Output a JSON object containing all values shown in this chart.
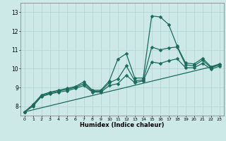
{
  "xlabel": "Humidex (Indice chaleur)",
  "bg_color": "#cce9e7",
  "line_color": "#1a6b5e",
  "grid_color": "#aed4d1",
  "xlim": [
    -0.5,
    23.5
  ],
  "ylim": [
    7.5,
    13.5
  ],
  "xticks": [
    0,
    1,
    2,
    3,
    4,
    5,
    6,
    7,
    8,
    9,
    10,
    11,
    12,
    13,
    14,
    15,
    16,
    17,
    18,
    19,
    20,
    21,
    22,
    23
  ],
  "yticks": [
    8,
    9,
    10,
    11,
    12,
    13
  ],
  "series": [
    {
      "x": [
        0,
        1,
        2,
        3,
        4,
        5,
        6,
        7,
        8,
        9,
        10,
        11,
        12,
        13,
        14,
        15,
        16,
        17,
        18,
        19,
        20,
        21,
        22,
        23
      ],
      "y": [
        7.7,
        8.1,
        8.6,
        8.75,
        8.85,
        8.95,
        9.05,
        9.3,
        8.85,
        8.85,
        9.35,
        10.5,
        10.8,
        9.5,
        9.5,
        12.8,
        12.75,
        12.35,
        11.2,
        10.3,
        10.25,
        10.55,
        10.1,
        10.25
      ],
      "marker": "D",
      "markersize": 2.5,
      "linewidth": 0.9
    },
    {
      "x": [
        0,
        1,
        2,
        3,
        4,
        5,
        6,
        7,
        8,
        9,
        10,
        11,
        12,
        13,
        14,
        15,
        16,
        17,
        18,
        19,
        20,
        21,
        22,
        23
      ],
      "y": [
        7.7,
        8.05,
        8.55,
        8.7,
        8.8,
        8.9,
        9.0,
        9.2,
        8.8,
        8.8,
        9.25,
        9.45,
        10.15,
        9.35,
        9.4,
        11.15,
        11.0,
        11.1,
        11.15,
        10.2,
        10.15,
        10.45,
        10.05,
        10.2
      ],
      "marker": "D",
      "markersize": 2.5,
      "linewidth": 0.9
    },
    {
      "x": [
        0,
        1,
        2,
        3,
        4,
        5,
        6,
        7,
        8,
        9,
        10,
        11,
        12,
        13,
        14,
        15,
        16,
        17,
        18,
        19,
        20,
        21,
        22,
        23
      ],
      "y": [
        7.7,
        8.0,
        8.52,
        8.65,
        8.75,
        8.82,
        8.95,
        9.1,
        8.75,
        8.75,
        9.1,
        9.2,
        9.65,
        9.25,
        9.35,
        10.35,
        10.28,
        10.42,
        10.52,
        10.05,
        10.05,
        10.28,
        9.98,
        10.12
      ],
      "marker": "D",
      "markersize": 2.5,
      "linewidth": 0.9
    },
    {
      "x": [
        0,
        23
      ],
      "y": [
        7.7,
        10.2
      ],
      "marker": null,
      "markersize": 0,
      "linewidth": 0.9
    }
  ]
}
